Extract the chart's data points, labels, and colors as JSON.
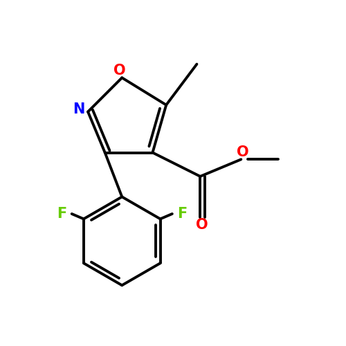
{
  "bg_color": "#ffffff",
  "bond_color": "#000000",
  "bond_width": 2.8,
  "atom_colors": {
    "O": "#ff0000",
    "N": "#0000ff",
    "F": "#66cc00",
    "C": "#000000"
  },
  "figsize": [
    5.0,
    5.0
  ],
  "dpi": 100
}
